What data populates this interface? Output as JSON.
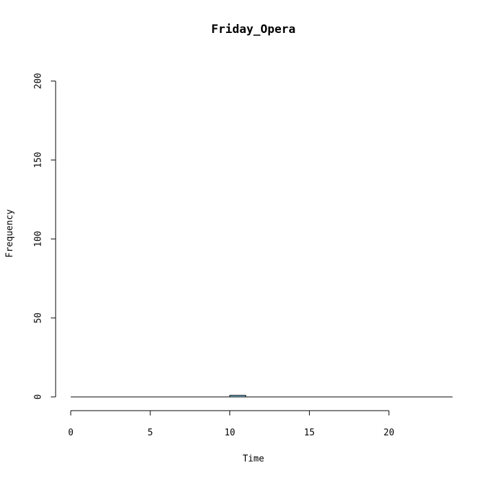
{
  "chart_data": {
    "type": "bar",
    "title": "Friday_Opera",
    "xlabel": "Time",
    "ylabel": "Frequency",
    "xlim": [
      0,
      24
    ],
    "ylim": [
      0,
      200
    ],
    "x_ticks": [
      0,
      5,
      10,
      15,
      20
    ],
    "y_ticks": [
      0,
      50,
      100,
      150,
      200
    ],
    "bins": [
      {
        "start": 0,
        "end": 1,
        "count": 0
      },
      {
        "start": 1,
        "end": 2,
        "count": 0
      },
      {
        "start": 2,
        "end": 3,
        "count": 0
      },
      {
        "start": 3,
        "end": 4,
        "count": 0
      },
      {
        "start": 4,
        "end": 5,
        "count": 0
      },
      {
        "start": 5,
        "end": 6,
        "count": 0
      },
      {
        "start": 6,
        "end": 7,
        "count": 0
      },
      {
        "start": 7,
        "end": 8,
        "count": 0
      },
      {
        "start": 8,
        "end": 9,
        "count": 0
      },
      {
        "start": 9,
        "end": 10,
        "count": 0
      },
      {
        "start": 10,
        "end": 11,
        "count": 1
      },
      {
        "start": 11,
        "end": 12,
        "count": 0
      },
      {
        "start": 12,
        "end": 13,
        "count": 0
      },
      {
        "start": 13,
        "end": 14,
        "count": 0
      },
      {
        "start": 14,
        "end": 15,
        "count": 0
      },
      {
        "start": 15,
        "end": 16,
        "count": 0
      },
      {
        "start": 16,
        "end": 17,
        "count": 0
      },
      {
        "start": 17,
        "end": 18,
        "count": 0
      },
      {
        "start": 18,
        "end": 19,
        "count": 0
      },
      {
        "start": 19,
        "end": 20,
        "count": 0
      },
      {
        "start": 20,
        "end": 21,
        "count": 0
      },
      {
        "start": 21,
        "end": 22,
        "count": 0
      },
      {
        "start": 22,
        "end": 23,
        "count": 0
      },
      {
        "start": 23,
        "end": 24,
        "count": 0
      }
    ],
    "bar_color": "#87ceeb",
    "grid": false,
    "legend": "none"
  }
}
